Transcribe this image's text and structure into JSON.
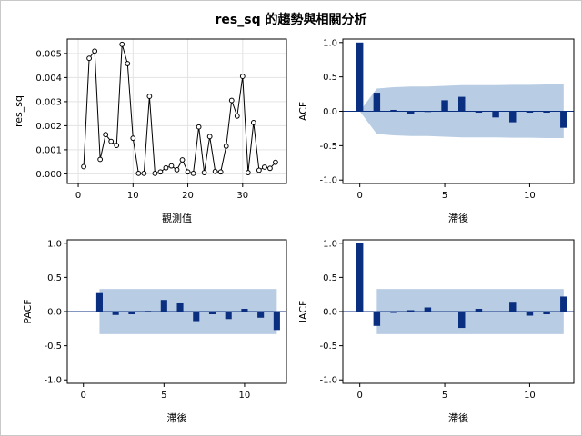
{
  "title": "res_sq 的趨勢與相關分析",
  "chart_data": [
    {
      "id": "trend",
      "type": "line",
      "xlabel": "觀測值",
      "ylabel": "res_sq",
      "xlim": [
        -2,
        38
      ],
      "ylim": [
        -0.0004,
        0.0056
      ],
      "xticks": [
        0,
        10,
        20,
        30
      ],
      "yticks": [
        0.0,
        0.001,
        0.002,
        0.003,
        0.004,
        0.005
      ],
      "ytick_labels": [
        "0.000",
        "0.001",
        "0.002",
        "0.003",
        "0.004",
        "0.005"
      ],
      "grid": true,
      "x": [
        1,
        2,
        3,
        4,
        5,
        6,
        7,
        8,
        9,
        10,
        11,
        12,
        13,
        14,
        15,
        16,
        17,
        18,
        19,
        20,
        21,
        22,
        23,
        24,
        25,
        26,
        27,
        28,
        29,
        30,
        31,
        32,
        33,
        34,
        35,
        36
      ],
      "y": [
        0.0003,
        0.0048,
        0.0051,
        0.0006,
        0.00163,
        0.00135,
        0.00118,
        0.00538,
        0.00458,
        0.00148,
        2e-05,
        2e-05,
        0.00322,
        2e-05,
        8e-05,
        0.00025,
        0.00033,
        0.00017,
        0.00058,
        8e-05,
        2e-05,
        0.00195,
        5e-05,
        0.00155,
        0.0001,
        8e-05,
        0.00115,
        0.00305,
        0.0024,
        0.00405,
        5e-05,
        0.00213,
        0.00015,
        0.00028,
        0.00023,
        0.00048
      ]
    },
    {
      "id": "acf",
      "type": "bar",
      "xlabel": "滯後",
      "ylabel": "ACF",
      "xlim": [
        -1,
        12.6
      ],
      "ylim": [
        -1.05,
        1.05
      ],
      "xticks": [
        0,
        5,
        10
      ],
      "yticks": [
        -1.0,
        -0.5,
        0.0,
        0.5,
        1.0
      ],
      "ytick_labels": [
        "-1.0",
        "-0.5",
        "0.0",
        "0.5",
        "1.0"
      ],
      "lags": [
        0,
        1,
        2,
        3,
        4,
        5,
        6,
        7,
        8,
        9,
        10,
        11,
        12
      ],
      "values": [
        1.0,
        0.27,
        0.02,
        -0.04,
        -0.01,
        0.16,
        0.21,
        -0.02,
        -0.09,
        -0.16,
        -0.02,
        -0.02,
        -0.24
      ],
      "band_lags": [
        0,
        1,
        2,
        3,
        4,
        5,
        6,
        7,
        8,
        9,
        10,
        11,
        12
      ],
      "band": [
        0.0,
        0.33,
        0.35,
        0.36,
        0.36,
        0.37,
        0.38,
        0.38,
        0.38,
        0.385,
        0.385,
        0.39,
        0.39
      ]
    },
    {
      "id": "pacf",
      "type": "bar",
      "xlabel": "滯後",
      "ylabel": "PACF",
      "xlim": [
        -1,
        12.6
      ],
      "ylim": [
        -1.05,
        1.05
      ],
      "xticks": [
        0,
        5,
        10
      ],
      "yticks": [
        -1.0,
        -0.5,
        0.0,
        0.5,
        1.0
      ],
      "ytick_labels": [
        "-1.0",
        "-0.5",
        "0.0",
        "0.5",
        "1.0"
      ],
      "lags": [
        1,
        2,
        3,
        4,
        5,
        6,
        7,
        8,
        9,
        10,
        11,
        12
      ],
      "values": [
        0.27,
        -0.05,
        -0.04,
        0.01,
        0.17,
        0.12,
        -0.14,
        -0.04,
        -0.11,
        0.04,
        -0.09,
        -0.27
      ],
      "band_range": [
        1,
        12
      ],
      "band": 0.33
    },
    {
      "id": "iacf",
      "type": "bar",
      "xlabel": "滯後",
      "ylabel": "IACF",
      "xlim": [
        -1,
        12.6
      ],
      "ylim": [
        -1.05,
        1.05
      ],
      "xticks": [
        0,
        5,
        10
      ],
      "yticks": [
        -1.0,
        -0.5,
        0.0,
        0.5,
        1.0
      ],
      "ytick_labels": [
        "-1.0",
        "-0.5",
        "0.0",
        "0.5",
        "1.0"
      ],
      "lags": [
        0,
        1,
        2,
        3,
        4,
        5,
        6,
        7,
        8,
        9,
        10,
        11,
        12
      ],
      "values": [
        1.0,
        -0.21,
        -0.02,
        0.02,
        0.06,
        -0.01,
        -0.24,
        0.04,
        0.0,
        0.13,
        -0.06,
        -0.04,
        0.22
      ],
      "band_range": [
        1,
        12
      ],
      "band": 0.33
    }
  ],
  "colors": {
    "bar": "#0b2f80",
    "band": "#b8cce4",
    "line": "#000000",
    "grid": "#e3e3e3",
    "zero_line": "#0b2f80"
  }
}
